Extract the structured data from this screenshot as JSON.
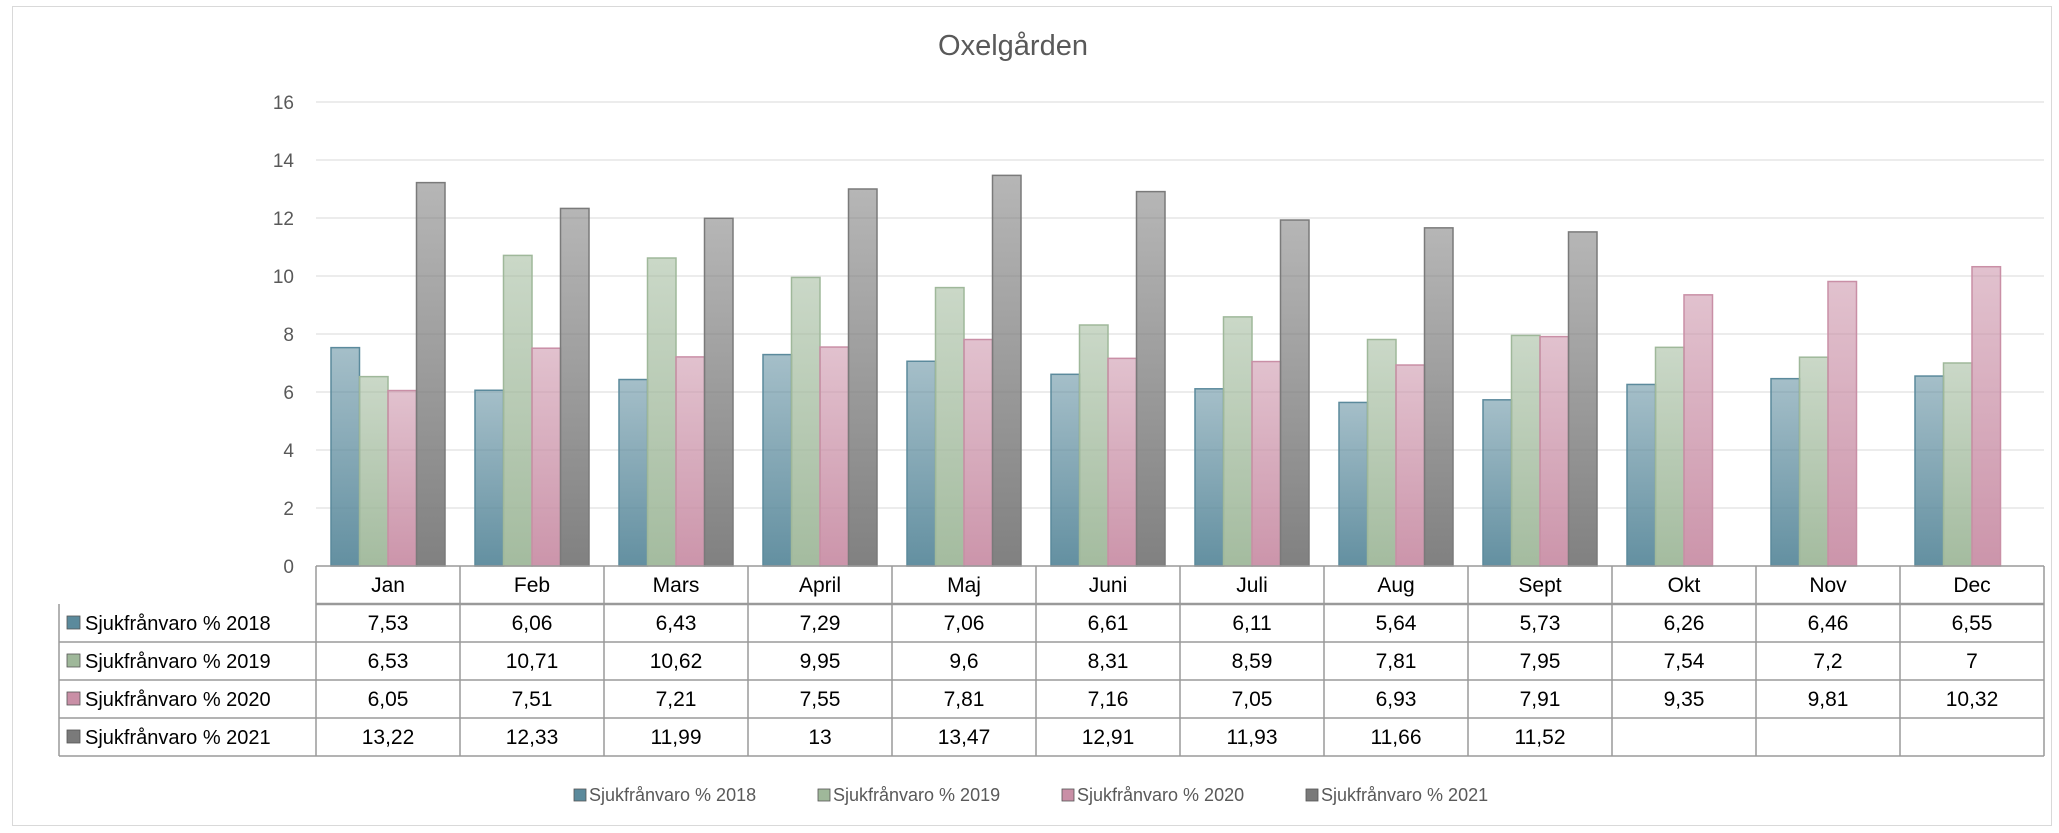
{
  "chart_data": {
    "type": "bar",
    "title": "Oxelgården",
    "categories": [
      "Jan",
      "Feb",
      "Mars",
      "April",
      "Maj",
      "Juni",
      "Juli",
      "Aug",
      "Sept",
      "Okt",
      "Nov",
      "Dec"
    ],
    "ylim": [
      0,
      16
    ],
    "yticks": [
      0,
      2,
      4,
      6,
      8,
      10,
      12,
      14,
      16
    ],
    "grid": true,
    "legend_position": "bottom",
    "data_table": true,
    "series": [
      {
        "name": "Sjukfrånvaro % 2018",
        "color": "#5b8a9c",
        "values": [
          7.53,
          6.06,
          6.43,
          7.29,
          7.06,
          6.61,
          6.11,
          5.64,
          5.73,
          6.26,
          6.46,
          6.55
        ],
        "labels": [
          "7,53",
          "6,06",
          "6,43",
          "7,29",
          "7,06",
          "6,61",
          "6,11",
          "5,64",
          "5,73",
          "6,26",
          "6,46",
          "6,55"
        ]
      },
      {
        "name": "Sjukfrånvaro % 2019",
        "color": "#9fb89a",
        "values": [
          6.53,
          10.71,
          10.62,
          9.95,
          9.6,
          8.31,
          8.59,
          7.81,
          7.95,
          7.54,
          7.2,
          7
        ],
        "labels": [
          "6,53",
          "10,71",
          "10,62",
          "9,95",
          "9,6",
          "8,31",
          "8,59",
          "7,81",
          "7,95",
          "7,54",
          "7,2",
          "7"
        ]
      },
      {
        "name": "Sjukfrånvaro % 2020",
        "color": "#c98fa6",
        "values": [
          6.05,
          7.51,
          7.21,
          7.55,
          7.81,
          7.16,
          7.05,
          6.93,
          7.91,
          9.35,
          9.81,
          10.32
        ],
        "labels": [
          "6,05",
          "7,51",
          "7,21",
          "7,55",
          "7,81",
          "7,16",
          "7,05",
          "6,93",
          "7,91",
          "9,35",
          "9,81",
          "10,32"
        ]
      },
      {
        "name": "Sjukfrånvaro % 2021",
        "color": "#7a7a7a",
        "values": [
          13.22,
          12.33,
          11.99,
          13,
          13.47,
          12.91,
          11.93,
          11.66,
          11.52,
          null,
          null,
          null
        ],
        "labels": [
          "13,22",
          "12,33",
          "11,99",
          "13",
          "13,47",
          "12,91",
          "11,93",
          "11,66",
          "11,52",
          "",
          "",
          ""
        ]
      }
    ]
  }
}
